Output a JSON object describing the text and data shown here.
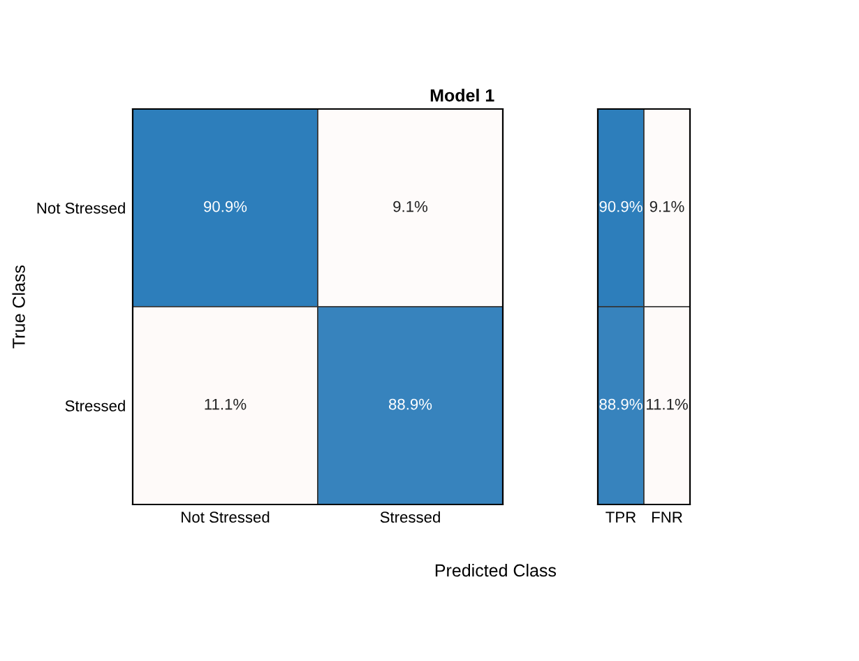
{
  "chart_data": [
    {
      "type": "heatmap",
      "title": "Model 1",
      "xlabel": "Predicted Class",
      "ylabel": "True Class",
      "categories": [
        "Not Stressed",
        "Stressed"
      ],
      "y_categories": [
        "Not Stressed",
        "Stressed"
      ],
      "cells": [
        [
          90.9,
          9.1
        ],
        [
          11.1,
          88.9
        ]
      ],
      "cell_labels": [
        [
          "90.9%",
          "9.1%"
        ],
        [
          "11.1%",
          "88.9%"
        ]
      ]
    },
    {
      "type": "heatmap",
      "categories": [
        "TPR",
        "FNR"
      ],
      "y_categories": [
        null,
        null
      ],
      "cells": [
        [
          90.9,
          9.1
        ],
        [
          88.9,
          11.1
        ]
      ],
      "cell_labels": [
        [
          "90.9%",
          "9.1%"
        ],
        [
          "88.9%",
          "11.1%"
        ]
      ],
      "tick_labels": "x"
    }
  ]
}
